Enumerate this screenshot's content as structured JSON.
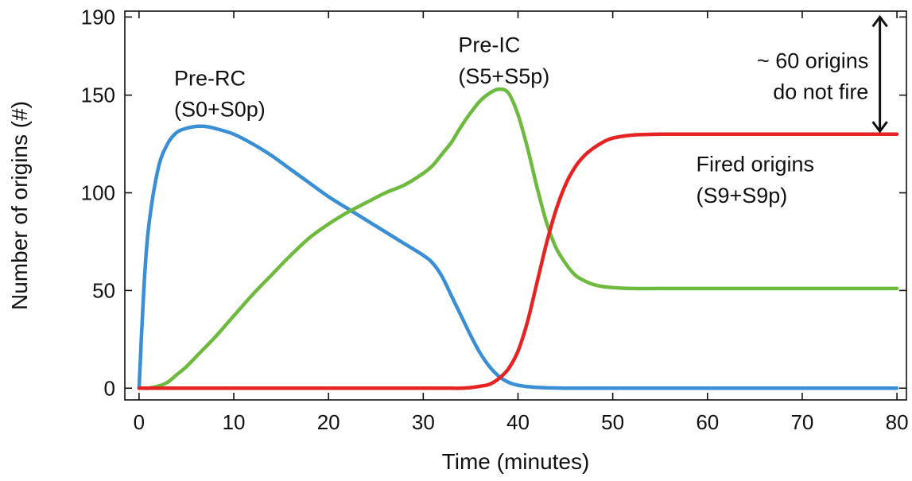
{
  "chart_data": {
    "type": "line",
    "xlabel": "Time (minutes)",
    "ylabel": "Number of origins (#)",
    "xlim": [
      -1.5,
      81
    ],
    "ylim": [
      -6,
      193
    ],
    "xticks": [
      0,
      10,
      20,
      30,
      40,
      50,
      60,
      70,
      80
    ],
    "yticks": [
      0,
      50,
      100,
      150,
      190
    ],
    "grid": false,
    "x": [
      0,
      0.5,
      1,
      2,
      3,
      4,
      5,
      6,
      7,
      8,
      10,
      12,
      14,
      16,
      18,
      20,
      22,
      24,
      26,
      28,
      30,
      31,
      32,
      33,
      34,
      35,
      36,
      37,
      38,
      39,
      40,
      41,
      42,
      43,
      44,
      45,
      46,
      47,
      48,
      49,
      50,
      52,
      55,
      60,
      65,
      70,
      75,
      80
    ],
    "series": [
      {
        "color": "#3a8fd4",
        "values": [
          0,
          50,
          82,
          112,
          125,
          131,
          133,
          134,
          134,
          133,
          130,
          125,
          119,
          112,
          105,
          98,
          92,
          86,
          80,
          74,
          68,
          64,
          57,
          47,
          37,
          27,
          18,
          11,
          6,
          3,
          1.5,
          0.8,
          0.4,
          0.2,
          0.1,
          0,
          0,
          0,
          0,
          0,
          0,
          0,
          0,
          0,
          0,
          0,
          0,
          0
        ]
      },
      {
        "color": "#6dba3f",
        "values": [
          0,
          0,
          0,
          1,
          3,
          7,
          11,
          16,
          21,
          26,
          37,
          48,
          58,
          68,
          77,
          84,
          90,
          95,
          100,
          104,
          110,
          114,
          120,
          126,
          134,
          141,
          147,
          151,
          153,
          151,
          140,
          123,
          103,
          85,
          72,
          64,
          58,
          55,
          53,
          52,
          51.5,
          51,
          51,
          51,
          51,
          51,
          51,
          51
        ]
      },
      {
        "color": "#e52323",
        "values": [
          0,
          0,
          0,
          0,
          0,
          0,
          0,
          0,
          0,
          0,
          0,
          0,
          0,
          0,
          0,
          0,
          0,
          0,
          0,
          0,
          0,
          0,
          0,
          0,
          0,
          0.3,
          1,
          2,
          5,
          10,
          19,
          34,
          54,
          74,
          91,
          104,
          113,
          119,
          123,
          126,
          128,
          129.5,
          130,
          130,
          130,
          130,
          130,
          130
        ]
      }
    ],
    "annotations": {
      "pre_rc": [
        "Pre-RC",
        "(S0+S0p)"
      ],
      "pre_ic": [
        "Pre-IC",
        "(S5+S5p)"
      ],
      "fired": [
        "Fired origins",
        "(S9+S9p)"
      ],
      "not_fire": [
        "~ 60 origins",
        "do not fire"
      ]
    }
  }
}
